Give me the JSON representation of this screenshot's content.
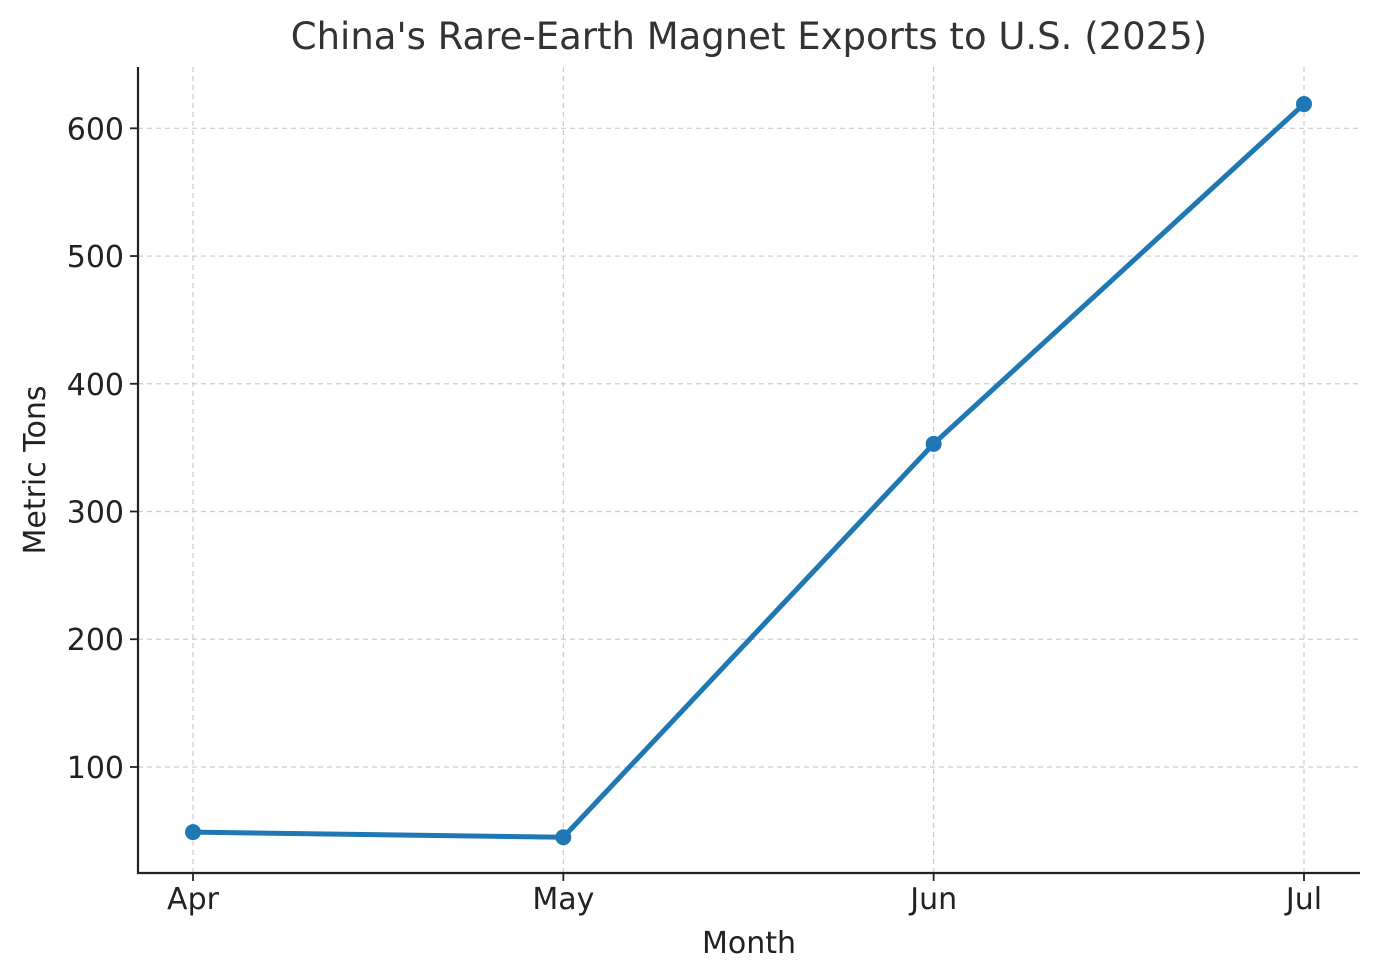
{
  "chart_data": {
    "type": "line",
    "title": "China's Rare-Earth Magnet Exports to U.S. (2025)",
    "xlabel": "Month",
    "ylabel": "Metric Tons",
    "categories": [
      "Apr",
      "May",
      "Jun",
      "Jul"
    ],
    "series": [
      {
        "values": [
          49,
          45,
          353,
          619
        ],
        "color": "#1f77b4",
        "marker": "circle"
      }
    ],
    "ylim": [
      17,
      648
    ],
    "yticks": [
      100,
      200,
      300,
      400,
      500,
      600
    ],
    "grid": true,
    "grid_style": "dashed",
    "legend": "none"
  }
}
